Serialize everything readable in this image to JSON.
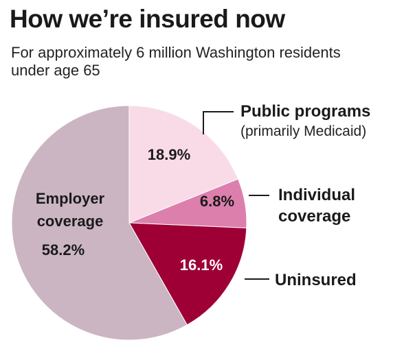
{
  "title": "How we’re insured now",
  "subtitle": "For approximately 6 million Washington residents under age 65",
  "chart_data": {
    "type": "pie",
    "slices": [
      {
        "key": "public",
        "lines": [
          "Public programs"
        ],
        "note": "(primarily Medicaid)",
        "value": 18.9,
        "value_label": "18.9%",
        "color": "#f9dbe8"
      },
      {
        "key": "individual",
        "lines": [
          "Individual",
          "coverage"
        ],
        "note": "",
        "value": 6.8,
        "value_label": "6.8%",
        "color": "#dc7fac"
      },
      {
        "key": "uninsured",
        "lines": [
          "Uninsured"
        ],
        "note": "",
        "value": 16.1,
        "value_label": "16.1%",
        "color": "#9e0036"
      },
      {
        "key": "employer",
        "lines": [
          "Employer",
          "coverage"
        ],
        "note": "",
        "value": 58.2,
        "value_label": "58.2%",
        "color": "#cbb5c3"
      }
    ]
  }
}
